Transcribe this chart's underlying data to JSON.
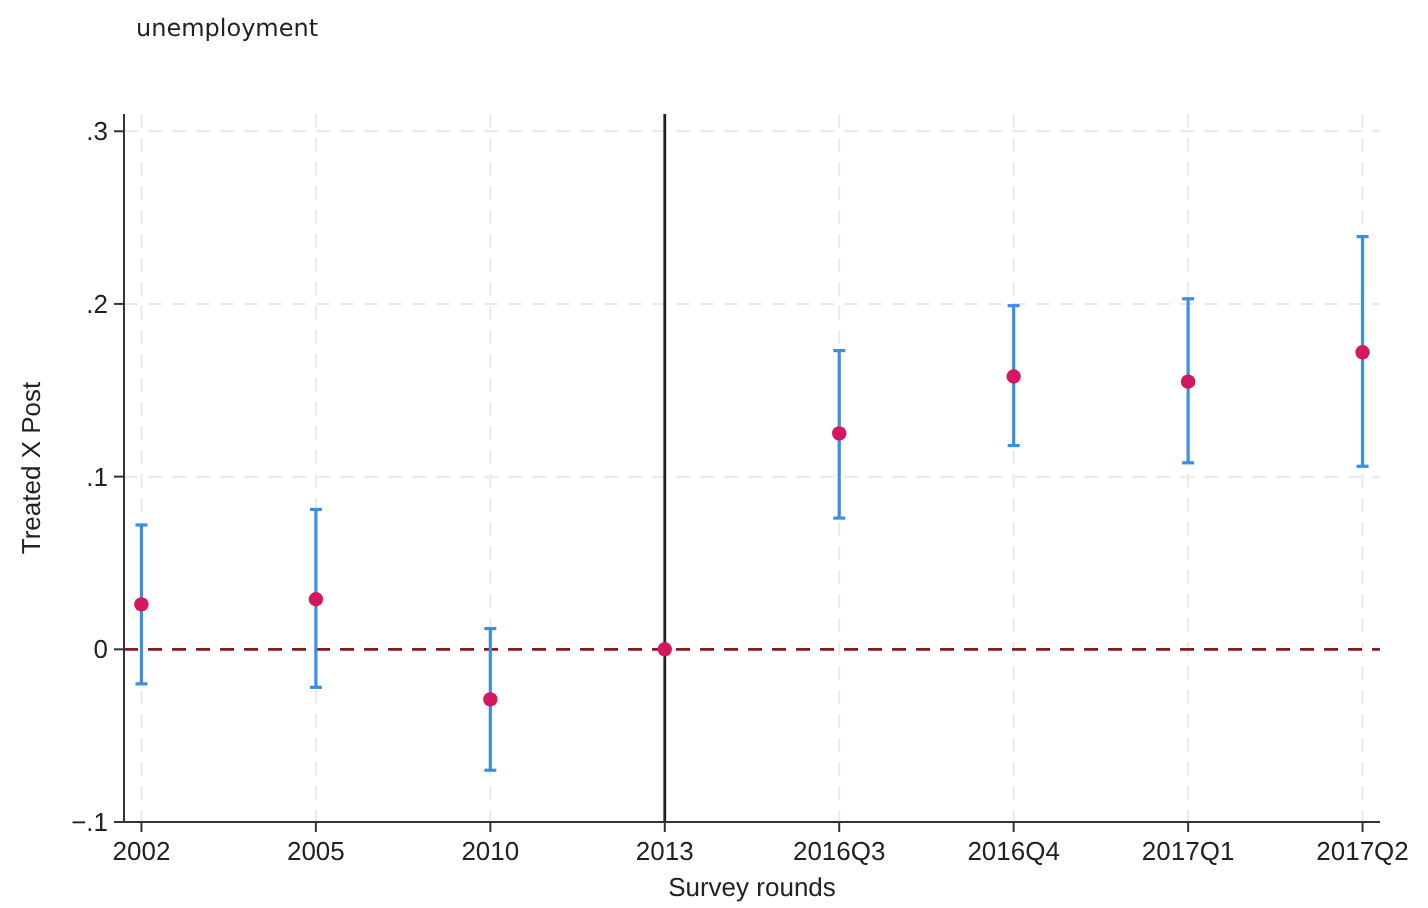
{
  "chart_data": {
    "type": "scatter",
    "title": "unemployment",
    "xlabel": "Survey rounds",
    "ylabel": "Treated X Post",
    "categories": [
      "2002",
      "2005",
      "2010",
      "2013",
      "2016Q3",
      "2016Q4",
      "2017Q1",
      "2017Q2"
    ],
    "series": [
      {
        "color": "#d6165e",
        "values": [
          0.026,
          0.029,
          -0.029,
          0,
          0.125,
          0.158,
          0.155,
          0.172
        ],
        "errors": [
          [
            -0.02,
            0.072
          ],
          [
            -0.022,
            0.081
          ],
          [
            -0.07,
            0.012
          ],
          null,
          [
            0.076,
            0.173
          ],
          [
            0.118,
            0.199
          ],
          [
            0.108,
            0.203
          ],
          [
            0.106,
            0.239
          ]
        ]
      }
    ],
    "ylim": [
      -0.1,
      0.31
    ],
    "yticks": [
      {
        "value": -0.1,
        "label": "−.1"
      },
      0,
      {
        "value": 0.1,
        "label": ".1"
      },
      {
        "value": 0.2,
        "label": ".2"
      },
      {
        "value": 0.3,
        "label": ".3"
      }
    ],
    "ref_lines": [
      {
        "axis": "y",
        "value": 0,
        "color": "#8b1a1a",
        "line_style": "dashed"
      },
      {
        "axis": "x",
        "value": "2013",
        "color": "#222222",
        "line_style": "solid"
      }
    ],
    "grid": true,
    "marker": "circle"
  }
}
